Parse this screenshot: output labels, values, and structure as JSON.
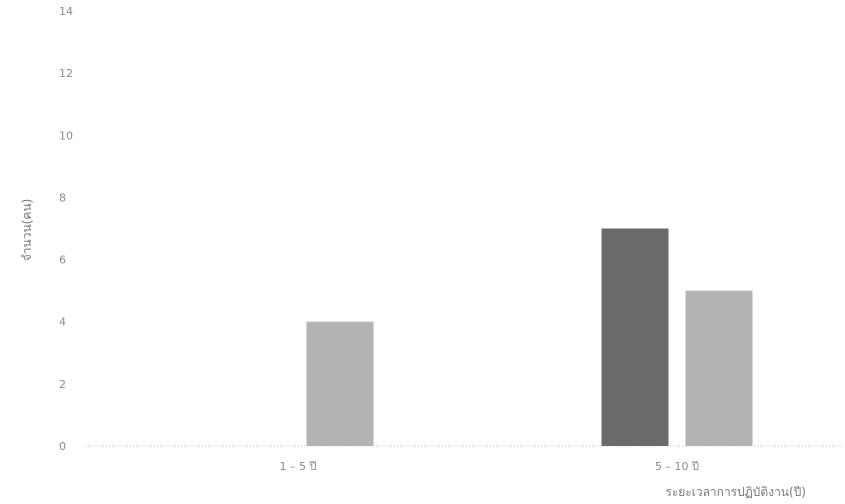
{
  "chart_data": {
    "type": "bar",
    "title": "",
    "xlabel": "ระยะเวลาการปฏิบัติงาน(ปี)",
    "ylabel": "จำนวน(คน)",
    "ylim": [
      0,
      14
    ],
    "yticks": [
      "0",
      "2",
      "4",
      "6",
      "8",
      "10",
      "12",
      "14"
    ],
    "categories": [
      "1 – 5 ปี",
      "5 – 10 ปี"
    ],
    "grid": false,
    "legend": "none",
    "series": [
      {
        "values": [
          0,
          7
        ],
        "color": "#6b6b6b"
      },
      {
        "values": [
          4,
          5
        ],
        "color": "#b3b3b3"
      }
    ]
  }
}
